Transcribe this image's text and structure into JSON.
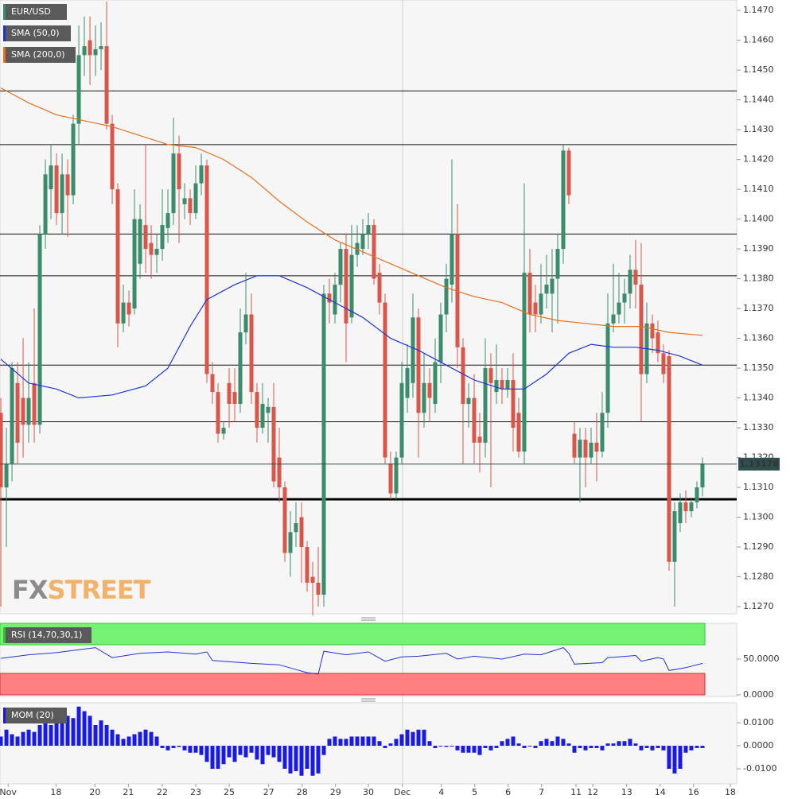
{
  "chart_data": [
    {
      "type": "candlestick",
      "title": "EUR/USD",
      "up_color": "#3b8c6c",
      "down_color": "#d9574a",
      "ylim": [
        1.12676,
        1.14735
      ],
      "xlim": [
        -0.15,
        132.15
      ],
      "yticks": [
        {
          "value": 1.127,
          "label": "1.1270"
        },
        {
          "value": 1.128,
          "label": "1.1280"
        },
        {
          "value": 1.129,
          "label": "1.1290"
        },
        {
          "value": 1.13,
          "label": "1.1300"
        },
        {
          "value": 1.131,
          "label": "1.1310"
        },
        {
          "value": 1.132,
          "label": "1.1320"
        },
        {
          "value": 1.133,
          "label": "1.1330"
        },
        {
          "value": 1.134,
          "label": "1.1340"
        },
        {
          "value": 1.135,
          "label": "1.1350"
        },
        {
          "value": 1.136,
          "label": "1.1360"
        },
        {
          "value": 1.137,
          "label": "1.1370"
        },
        {
          "value": 1.138,
          "label": "1.1380"
        },
        {
          "value": 1.139,
          "label": "1.1390"
        },
        {
          "value": 1.14,
          "label": "1.1400"
        },
        {
          "value": 1.141,
          "label": "1.1410"
        },
        {
          "value": 1.142,
          "label": "1.1420"
        },
        {
          "value": 1.143,
          "label": "1.1430"
        },
        {
          "value": 1.144,
          "label": "1.1440"
        },
        {
          "value": 1.145,
          "label": "1.1450"
        },
        {
          "value": 1.146,
          "label": "1.1460"
        },
        {
          "value": 1.147,
          "label": "1.1470"
        }
      ],
      "xticks": [
        {
          "value": 1.3,
          "label": "Nov"
        },
        {
          "value": 9.9,
          "label": "18"
        },
        {
          "value": 16.9,
          "label": "20"
        },
        {
          "value": 22.9,
          "label": "21"
        },
        {
          "value": 29,
          "label": "22"
        },
        {
          "value": 35,
          "label": "23"
        },
        {
          "value": 41,
          "label": "25"
        },
        {
          "value": 48.1,
          "label": "27"
        },
        {
          "value": 54.1,
          "label": "28"
        },
        {
          "value": 60.1,
          "label": "29"
        },
        {
          "value": 66,
          "label": "30"
        },
        {
          "value": 72.1,
          "label": "Dec"
        },
        {
          "value": 79.1,
          "label": "4"
        },
        {
          "value": 85.1,
          "label": "5"
        },
        {
          "value": 91.1,
          "label": "6"
        },
        {
          "value": 97.1,
          "label": "7"
        },
        {
          "value": 103.3,
          "label": "11"
        },
        {
          "value": 106.3,
          "label": "12"
        },
        {
          "value": 112.4,
          "label": "13"
        },
        {
          "value": 118.4,
          "label": "14"
        },
        {
          "value": 124.4,
          "label": "16"
        },
        {
          "value": 131,
          "label": "18"
        }
      ],
      "open": [
        1.1335,
        1.131,
        1.1318,
        1.1345,
        1.134,
        1.1331,
        1.1345,
        1.1331,
        1.1395,
        1.141,
        1.1418,
        1.1402,
        1.1415,
        1.1408,
        1.1432,
        1.1455,
        1.146,
        1.1455,
        1.1457,
        1.1458,
        1.1432,
        1.141,
        1.1365,
        1.1372,
        1.137,
        1.1385,
        1.1398,
        1.1392,
        1.1388,
        1.139,
        1.1397,
        1.1402,
        1.1422,
        1.1405,
        1.1407,
        1.1402,
        1.1412,
        1.1418,
        1.1348,
        1.1342,
        1.1328,
        1.1345,
        1.1342,
        1.1338,
        1.1362,
        1.1368,
        1.1342,
        1.133,
        1.1335,
        1.1337,
        1.132,
        1.131,
        1.1288,
        1.1295,
        1.13,
        1.129,
        1.128,
        1.1278,
        1.1274,
        1.1375,
        1.1368,
        1.1378,
        1.139,
        1.1367,
        1.1388,
        1.139,
        1.1395,
        1.1398,
        1.1382,
        1.1372,
        1.1318,
        1.1308,
        1.132,
        1.134,
        1.1345,
        1.1367,
        1.1335,
        1.1345,
        1.1338,
        1.1352,
        1.1368,
        1.1378,
        1.1395,
        1.1357,
        1.1338,
        1.134,
        1.1327,
        1.1325,
        1.135,
        1.1342,
        1.1346,
        1.1343,
        1.1346,
        1.1335,
        1.1322,
        1.1382,
        1.1372,
        1.1368,
        1.1375,
        1.1375,
        1.138,
        1.139,
        1.1423,
        1.1328,
        1.132,
        1.1326,
        1.132,
        1.1325,
        1.1322,
        1.1335,
        1.1365,
        1.1368,
        1.1372,
        1.1375,
        1.1383,
        1.1378,
        1.1348,
        1.1365,
        1.1362,
        1.1355,
        1.1354,
        1.1285,
        1.1298,
        1.1305,
        1.1302,
        1.1305,
        1.131
      ],
      "high": [
        1.134,
        1.133,
        1.1352,
        1.1352,
        1.136,
        1.1352,
        1.137,
        1.1398,
        1.142,
        1.1425,
        1.1422,
        1.1422,
        1.142,
        1.1435,
        1.1465,
        1.1468,
        1.1468,
        1.1465,
        1.1466,
        1.1473,
        1.1435,
        1.1412,
        1.1378,
        1.1376,
        1.141,
        1.1405,
        1.1425,
        1.1398,
        1.1395,
        1.141,
        1.141,
        1.1434,
        1.1428,
        1.1412,
        1.141,
        1.1418,
        1.1422,
        1.142,
        1.1352,
        1.1345,
        1.1332,
        1.135,
        1.135,
        1.137,
        1.1382,
        1.1375,
        1.1345,
        1.1345,
        1.134,
        1.1345,
        1.133,
        1.1312,
        1.1302,
        1.1305,
        1.1305,
        1.1292,
        1.1285,
        1.129,
        1.1378,
        1.138,
        1.1382,
        1.1392,
        1.1395,
        1.1398,
        1.1398,
        1.14,
        1.1402,
        1.14,
        1.1385,
        1.1375,
        1.1322,
        1.1322,
        1.1352,
        1.1358,
        1.1375,
        1.137,
        1.1355,
        1.135,
        1.136,
        1.1372,
        1.1385,
        1.142,
        1.1405,
        1.136,
        1.1345,
        1.1348,
        1.1335,
        1.136,
        1.1355,
        1.1358,
        1.135,
        1.135,
        1.1355,
        1.134,
        1.1412,
        1.139,
        1.1378,
        1.1385,
        1.1388,
        1.139,
        1.1395,
        1.1425,
        1.1424,
        1.1332,
        1.133,
        1.133,
        1.133,
        1.1335,
        1.1342,
        1.1375,
        1.1385,
        1.1382,
        1.138,
        1.1388,
        1.1393,
        1.1392,
        1.1372,
        1.1368,
        1.1366,
        1.1358,
        1.1356,
        1.1305,
        1.1308,
        1.1309,
        1.1306,
        1.1312,
        1.132
      ],
      "low": [
        1.127,
        1.129,
        1.1312,
        1.1318,
        1.132,
        1.1325,
        1.1325,
        1.1328,
        1.139,
        1.14,
        1.1398,
        1.1395,
        1.1394,
        1.1405,
        1.1425,
        1.1448,
        1.1445,
        1.1448,
        1.145,
        1.143,
        1.1405,
        1.1357,
        1.1362,
        1.1364,
        1.1368,
        1.138,
        1.1382,
        1.138,
        1.1382,
        1.1386,
        1.1392,
        1.1398,
        1.1392,
        1.14,
        1.1398,
        1.14,
        1.1408,
        1.1345,
        1.1338,
        1.1325,
        1.1326,
        1.133,
        1.1332,
        1.1335,
        1.1358,
        1.1338,
        1.1325,
        1.1328,
        1.1325,
        1.131,
        1.1305,
        1.1285,
        1.128,
        1.129,
        1.1278,
        1.1275,
        1.1267,
        1.127,
        1.127,
        1.1365,
        1.1365,
        1.1372,
        1.1352,
        1.1365,
        1.1384,
        1.1388,
        1.139,
        1.1378,
        1.1368,
        1.1318,
        1.1306,
        1.1306,
        1.1318,
        1.1335,
        1.134,
        1.132,
        1.133,
        1.1332,
        1.1335,
        1.1345,
        1.1362,
        1.1372,
        1.135,
        1.1318,
        1.133,
        1.1318,
        1.1315,
        1.132,
        1.131,
        1.1338,
        1.1338,
        1.134,
        1.1322,
        1.132,
        1.1318,
        1.1362,
        1.1362,
        1.1365,
        1.137,
        1.1362,
        1.1365,
        1.1385,
        1.1405,
        1.1318,
        1.1305,
        1.131,
        1.1318,
        1.1312,
        1.132,
        1.133,
        1.1362,
        1.1365,
        1.1365,
        1.137,
        1.137,
        1.1332,
        1.1345,
        1.1355,
        1.1352,
        1.1345,
        1.1282,
        1.127,
        1.1295,
        1.1298,
        1.13,
        1.1303,
        1.1307
      ],
      "close": [
        1.131,
        1.1318,
        1.135,
        1.1325,
        1.1331,
        1.134,
        1.1331,
        1.1395,
        1.1415,
        1.1418,
        1.1402,
        1.1415,
        1.1408,
        1.1432,
        1.1455,
        1.1458,
        1.1455,
        1.1457,
        1.1458,
        1.1432,
        1.141,
        1.1365,
        1.1372,
        1.1368,
        1.14,
        1.14,
        1.139,
        1.1388,
        1.139,
        1.1398,
        1.1402,
        1.1422,
        1.141,
        1.1407,
        1.1402,
        1.1412,
        1.1418,
        1.1348,
        1.1342,
        1.1328,
        1.133,
        1.1338,
        1.1338,
        1.1362,
        1.1368,
        1.1342,
        1.133,
        1.1338,
        1.1337,
        1.1312,
        1.131,
        1.1288,
        1.1295,
        1.1298,
        1.129,
        1.1278,
        1.1278,
        1.1274,
        1.1375,
        1.1372,
        1.1378,
        1.139,
        1.1365,
        1.1388,
        1.1392,
        1.1395,
        1.1398,
        1.138,
        1.1372,
        1.132,
        1.1308,
        1.132,
        1.1345,
        1.135,
        1.1367,
        1.1335,
        1.1345,
        1.134,
        1.1352,
        1.1368,
        1.138,
        1.1395,
        1.1357,
        1.1338,
        1.134,
        1.1325,
        1.1325,
        1.135,
        1.1345,
        1.1346,
        1.1343,
        1.1346,
        1.133,
        1.1322,
        1.1382,
        1.1368,
        1.1368,
        1.1375,
        1.1378,
        1.138,
        1.139,
        1.1423,
        1.1408,
        1.132,
        1.1326,
        1.132,
        1.1325,
        1.1322,
        1.1335,
        1.1365,
        1.1368,
        1.1372,
        1.1375,
        1.1383,
        1.1378,
        1.1348,
        1.1365,
        1.136,
        1.1355,
        1.1348,
        1.1285,
        1.1302,
        1.1305,
        1.1302,
        1.1305,
        1.131,
        1.1318
      ],
      "overlays": [
        {
          "name": "SMA (50,0)",
          "color": "#1f35d6",
          "x": [
            0,
            5,
            10,
            14,
            20,
            26,
            30,
            34,
            37,
            42,
            46,
            50,
            55,
            60,
            65,
            70,
            75,
            80,
            85,
            90,
            94,
            98,
            102,
            106,
            110,
            114,
            118,
            122,
            126
          ],
          "values": [
            1.1353,
            1.1345,
            1.1343,
            1.134,
            1.1341,
            1.1344,
            1.135,
            1.1364,
            1.1373,
            1.1378,
            1.1381,
            1.1381,
            1.1377,
            1.1372,
            1.1367,
            1.136,
            1.1356,
            1.1351,
            1.1346,
            1.1343,
            1.1343,
            1.1348,
            1.1355,
            1.1358,
            1.1357,
            1.1357,
            1.1356,
            1.1354,
            1.1351
          ]
        },
        {
          "name": "SMA (200,0)",
          "color": "#e8701e",
          "x": [
            0,
            5,
            10,
            15,
            20,
            25,
            30,
            35,
            40,
            45,
            50,
            55,
            60,
            65,
            70,
            75,
            80,
            85,
            90,
            95,
            100,
            105,
            110,
            115,
            120,
            126
          ],
          "values": [
            1.1444,
            1.1439,
            1.1435,
            1.1433,
            1.1431,
            1.1428,
            1.1425,
            1.1424,
            1.142,
            1.1414,
            1.1406,
            1.1399,
            1.1393,
            1.1389,
            1.1385,
            1.1381,
            1.1377,
            1.1374,
            1.1372,
            1.1368,
            1.1366,
            1.1365,
            1.1364,
            1.1364,
            1.1362,
            1.1361
          ]
        }
      ],
      "levels": [
        1.1443,
        1.1425,
        1.1395,
        1.1381,
        1.1351,
        1.1332
      ],
      "key_level": 1.1306,
      "last_price": 1.13178,
      "watermark": [
        "FX",
        "STREET"
      ]
    },
    {
      "type": "line",
      "title": "RSI (14,70,30,1)",
      "color": "#1f35d6",
      "upper": 70,
      "lower": 30,
      "upper_color": "#74f274",
      "lower_color": "#ff8080",
      "ylim": [
        0,
        100
      ],
      "yticks": [
        {
          "value": 50,
          "label": "50.0000"
        },
        {
          "value": 0,
          "label": "0.0000"
        }
      ],
      "x": [
        0,
        5,
        10,
        15,
        17,
        20,
        25,
        30,
        35,
        37,
        38,
        45,
        50,
        55,
        57,
        58,
        62,
        66,
        69,
        72,
        75,
        80,
        82,
        85,
        90,
        94,
        97,
        101,
        102,
        103,
        108,
        109,
        114,
        115,
        118,
        119,
        120,
        123,
        126
      ],
      "values": [
        51,
        56,
        59,
        64,
        66,
        52,
        58,
        60,
        57,
        60,
        48,
        44,
        42,
        31,
        29,
        61,
        56,
        60,
        47,
        53,
        54,
        58,
        50,
        54,
        50,
        57,
        56,
        66,
        58,
        43,
        45,
        52,
        55,
        47,
        52,
        50,
        34,
        38,
        44
      ]
    },
    {
      "type": "bar",
      "title": "MOM (20)",
      "color": "#1a1ae6",
      "ylim": [
        -0.0162,
        0.0183
      ],
      "yticks": [
        {
          "value": 0.01,
          "label": "0.0100"
        },
        {
          "value": 0,
          "label": "0.0000"
        },
        {
          "value": -0.01,
          "label": "-0.0100"
        }
      ],
      "values": [
        0.004,
        0.007,
        0.005,
        0.004,
        0.006,
        0.007,
        0.006,
        0.009,
        0.01,
        0.009,
        0.011,
        0.01,
        0.013,
        0.012,
        0.017,
        0.015,
        0.013,
        0.009,
        0.011,
        0.009,
        0.007,
        0.005,
        0.003,
        0.004,
        0.005,
        0.006,
        0.007,
        0.006,
        0.004,
        -0.001,
        -0.002,
        -0.001,
        -0.0005,
        -0.002,
        -0.003,
        -0.003,
        -0.004,
        -0.007,
        -0.01,
        -0.01,
        -0.008,
        -0.005,
        -0.007,
        -0.004,
        -0.005,
        -0.003,
        -0.006,
        -0.008,
        -0.004,
        -0.005,
        -0.007,
        -0.01,
        -0.012,
        -0.011,
        -0.013,
        -0.01,
        -0.013,
        -0.012,
        -0.004,
        0.003,
        0.004,
        0.003,
        0.003,
        0.004,
        0.004,
        0.004,
        0.004,
        0.004,
        0.002,
        -0.001,
        0.001,
        0.003,
        0.005,
        0.007,
        0.006,
        0.007,
        0.007,
        0.002,
        -0.001,
        0,
        -0.0005,
        0,
        -0.002,
        -0.003,
        -0.003,
        -0.003,
        -0.004,
        -0.001,
        -0.002,
        -0.001,
        0.002,
        0.003,
        0.004,
        0.001,
        -0.001,
        0,
        -0.001,
        0.002,
        0.003,
        0.002,
        0.004,
        0.003,
        0.001,
        -0.003,
        -0.001,
        -0.002,
        -0.001,
        -0.001,
        -0.002,
        0.001,
        0.001,
        0.002,
        0.002,
        0.003,
        0.001,
        -0.002,
        -0.001,
        -0.002,
        -0.001,
        -0.002,
        -0.01,
        -0.012,
        -0.01,
        -0.003,
        -0.002,
        -0.001,
        -0.001
      ]
    }
  ]
}
